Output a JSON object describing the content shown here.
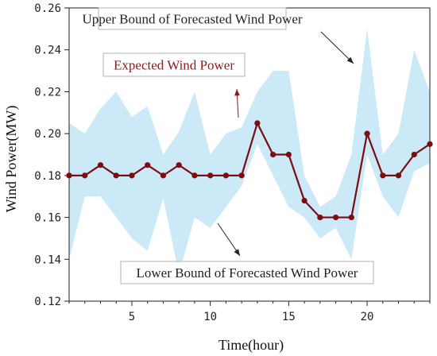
{
  "chart_data": {
    "type": "area",
    "xlabel": "Time(hour)",
    "ylabel": "Wind Power(MW)",
    "xlim": [
      1,
      24
    ],
    "ylim": [
      0.12,
      0.26
    ],
    "x_ticks": [
      5,
      10,
      15,
      20
    ],
    "y_ticks": [
      "0.12",
      "0.14",
      "0.16",
      "0.18",
      "0.20",
      "0.22",
      "0.24",
      "0.26"
    ],
    "grid": false,
    "x": [
      1,
      2,
      3,
      4,
      5,
      6,
      7,
      8,
      9,
      10,
      11,
      12,
      13,
      14,
      15,
      16,
      17,
      18,
      19,
      20,
      21,
      22,
      23,
      24
    ],
    "series": [
      {
        "name": "Upper Bound of Forecasted Wind Power",
        "values": [
          0.205,
          0.2,
          0.212,
          0.22,
          0.208,
          0.213,
          0.19,
          0.201,
          0.22,
          0.19,
          0.2,
          0.203,
          0.22,
          0.23,
          0.23,
          0.18,
          0.165,
          0.17,
          0.19,
          0.25,
          0.19,
          0.2,
          0.24,
          0.22
        ],
        "color": "#cce9f8"
      },
      {
        "name": "Lower Bound of Forecasted Wind Power",
        "values": [
          0.14,
          0.17,
          0.17,
          0.16,
          0.15,
          0.144,
          0.169,
          0.133,
          0.16,
          0.155,
          0.165,
          0.175,
          0.195,
          0.18,
          0.165,
          0.16,
          0.15,
          0.155,
          0.14,
          0.19,
          0.17,
          0.16,
          0.182,
          0.186
        ],
        "color": "#cce9f8"
      },
      {
        "name": "Expected Wind Power",
        "values": [
          0.18,
          0.18,
          0.185,
          0.18,
          0.18,
          0.185,
          0.18,
          0.185,
          0.18,
          0.18,
          0.18,
          0.18,
          0.205,
          0.19,
          0.19,
          0.168,
          0.16,
          0.16,
          0.16,
          0.2,
          0.18,
          0.18,
          0.19,
          0.195
        ],
        "color": "#7b0c10"
      }
    ],
    "annotations": [
      {
        "text": "Upper Bound of Forecasted Wind Power",
        "boxed": true,
        "color": "#222222"
      },
      {
        "text": "Expected Wind Power",
        "boxed": true,
        "color": "#8b1a1a"
      },
      {
        "text": "Lower Bound of Forecasted Wind Power",
        "boxed": true,
        "color": "#222222"
      }
    ]
  }
}
